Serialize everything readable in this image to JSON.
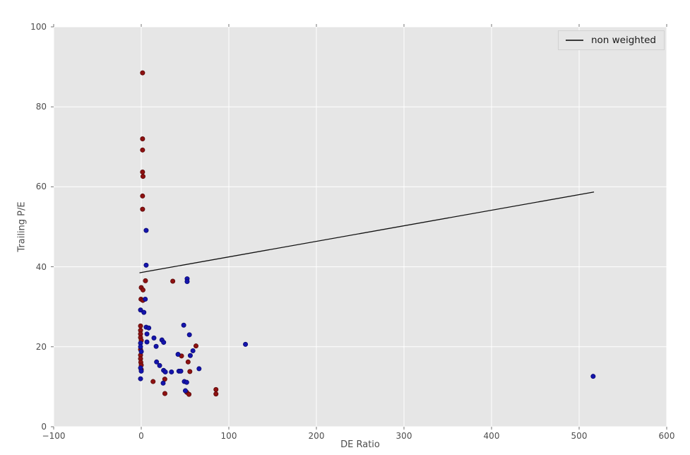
{
  "figure": {
    "background": "#ffffff",
    "plot_background": "#e6e6e6",
    "grid_color": "#ffffff",
    "tick_mark_color": "#666666",
    "text_color": "#4d4d4d"
  },
  "legend": {
    "label": "non weighted",
    "line_color": "#000000",
    "position": "upper right"
  },
  "chart_data": {
    "type": "scatter",
    "title": "",
    "xlabel": "DE Ratio",
    "ylabel": "Trailing P/E",
    "xlim": [
      -100,
      600
    ],
    "ylim": [
      0,
      100
    ],
    "grid": true,
    "legend_position": "upper right",
    "x_ticks": [
      -100,
      0,
      100,
      200,
      300,
      400,
      500,
      600
    ],
    "x_tick_labels": [
      "−100",
      "0",
      "100",
      "200",
      "300",
      "400",
      "500",
      "600"
    ],
    "y_ticks": [
      0,
      20,
      40,
      60,
      80,
      100
    ],
    "y_tick_labels": [
      "0",
      "20",
      "40",
      "60",
      "80",
      "100"
    ],
    "series": [
      {
        "name": "red-group",
        "type": "scatter",
        "color": "#8e1111",
        "edge_color": "#5a0808",
        "points": [
          [
            1.5,
            88.5
          ],
          [
            1.5,
            72.0
          ],
          [
            1.5,
            69.2
          ],
          [
            1.5,
            63.7
          ],
          [
            2.0,
            62.6
          ],
          [
            1.5,
            57.7
          ],
          [
            1.5,
            54.4
          ],
          [
            4.8,
            36.5
          ],
          [
            0.0,
            34.8
          ],
          [
            2.0,
            34.2
          ],
          [
            -0.3,
            31.9
          ],
          [
            1.8,
            31.6
          ],
          [
            36.0,
            36.4
          ],
          [
            -0.8,
            25.2
          ],
          [
            -0.8,
            24.1
          ],
          [
            -0.8,
            23.2
          ],
          [
            -0.8,
            22.3
          ],
          [
            0.0,
            21.6
          ],
          [
            -0.8,
            19.3
          ],
          [
            -0.8,
            17.9
          ],
          [
            -0.8,
            17.0
          ],
          [
            -0.5,
            16.1
          ],
          [
            0.0,
            15.4
          ],
          [
            0.0,
            14.3
          ],
          [
            62.5,
            20.2
          ],
          [
            46.0,
            17.7
          ],
          [
            53.5,
            16.2
          ],
          [
            55.5,
            13.8
          ],
          [
            13.5,
            11.3
          ],
          [
            26.9,
            11.9
          ],
          [
            27.0,
            8.3
          ],
          [
            52.0,
            8.6
          ],
          [
            54.5,
            8.1
          ],
          [
            85.3,
            9.3
          ],
          [
            85.3,
            8.2
          ]
        ]
      },
      {
        "name": "blue-group",
        "type": "scatter",
        "color": "#1414ad",
        "edge_color": "#0a0a70",
        "points": [
          [
            5.6,
            49.1
          ],
          [
            5.6,
            40.4
          ],
          [
            4.6,
            31.9
          ],
          [
            -0.8,
            29.2
          ],
          [
            3.0,
            28.6
          ],
          [
            52.4,
            37.0
          ],
          [
            52.4,
            36.3
          ],
          [
            5.6,
            24.9
          ],
          [
            8.6,
            24.7
          ],
          [
            6.5,
            23.2
          ],
          [
            6.5,
            21.2
          ],
          [
            -0.8,
            20.9
          ],
          [
            -0.8,
            20.0
          ],
          [
            0.0,
            18.8
          ],
          [
            -0.8,
            14.7
          ],
          [
            0.0,
            13.9
          ],
          [
            -0.8,
            12.0
          ],
          [
            14.5,
            22.2
          ],
          [
            23.6,
            21.7
          ],
          [
            25.6,
            21.1
          ],
          [
            17.0,
            20.1
          ],
          [
            17.5,
            16.2
          ],
          [
            21.0,
            15.3
          ],
          [
            25.5,
            14.1
          ],
          [
            27.5,
            13.7
          ],
          [
            34.5,
            13.7
          ],
          [
            43.0,
            13.9
          ],
          [
            45.2,
            13.9
          ],
          [
            66.0,
            14.5
          ],
          [
            48.5,
            25.4
          ],
          [
            55.0,
            23.0
          ],
          [
            59.0,
            19.0
          ],
          [
            42.0,
            18.1
          ],
          [
            56.0,
            17.8
          ],
          [
            25.0,
            10.9
          ],
          [
            49.2,
            11.3
          ],
          [
            51.9,
            11.1
          ],
          [
            50.4,
            9.0
          ],
          [
            119.0,
            20.6
          ],
          [
            516.0,
            12.6
          ]
        ]
      },
      {
        "name": "non weighted",
        "type": "line",
        "color": "#111111",
        "points": [
          [
            -2.0,
            38.5
          ],
          [
            517.0,
            58.7
          ]
        ]
      }
    ]
  }
}
